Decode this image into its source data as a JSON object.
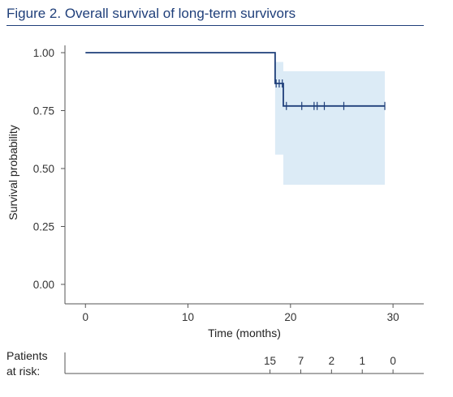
{
  "figure": {
    "label": "Figure 2",
    "title": ". Overall survival of long-term survivors"
  },
  "colors": {
    "title": "#1f3f7a",
    "curve": "#1f3f7a",
    "ci_band": "#dcebf6",
    "axis": "#555555"
  },
  "risk_table": {
    "label_line1": "Patients",
    "label_line2": "at risk:"
  },
  "chart_data": {
    "type": "line",
    "subtype": "kaplan-meier",
    "title": "Overall survival of long-term survivors",
    "xlabel": "Time (months)",
    "ylabel": "Survival probability",
    "xlim": [
      -2,
      33
    ],
    "ylim": [
      0,
      1
    ],
    "x_ticks": [
      0,
      10,
      20,
      30
    ],
    "y_ticks": [
      0.0,
      0.25,
      0.5,
      0.75,
      1.0
    ],
    "y_tick_labels": [
      "0.00",
      "0.25",
      "0.50",
      "0.75",
      "1.00"
    ],
    "grid": false,
    "series": [
      {
        "steps": [
          [
            0,
            1.0
          ],
          [
            18.5,
            1.0
          ],
          [
            18.5,
            0.867
          ],
          [
            19.3,
            0.867
          ],
          [
            19.3,
            0.77
          ],
          [
            29.2,
            0.77
          ]
        ],
        "censored": [
          18.6,
          18.9,
          19.2,
          19.6,
          21.1,
          22.3,
          22.6,
          23.3,
          25.2,
          29.2
        ],
        "ci": [
          {
            "x0": 18.5,
            "x1": 19.3,
            "lower": 0.56,
            "upper": 0.96
          },
          {
            "x0": 19.3,
            "x1": 29.2,
            "lower": 0.43,
            "upper": 0.92
          }
        ]
      }
    ],
    "at_risk": [
      {
        "time": 18,
        "n": "15"
      },
      {
        "time": 21,
        "n": "7"
      },
      {
        "time": 24,
        "n": "2"
      },
      {
        "time": 27,
        "n": "1"
      },
      {
        "time": 30,
        "n": "0"
      }
    ]
  }
}
